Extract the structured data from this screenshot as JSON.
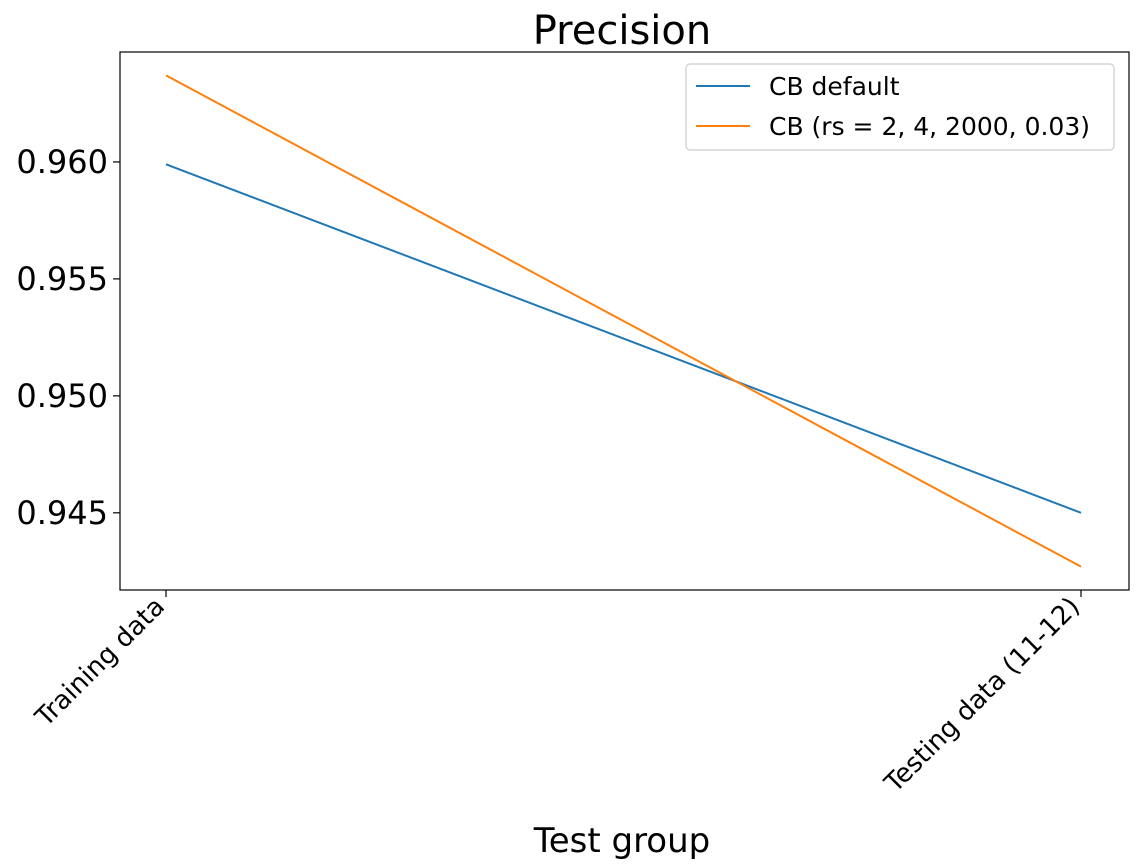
{
  "chart_data": {
    "type": "line",
    "title": "Precision",
    "xlabel": "Test group",
    "ylabel": "",
    "categories": [
      "Training data",
      "Testing data (11-12)"
    ],
    "ylim": [
      0.9417,
      0.9647
    ],
    "yticks": [
      "0.945",
      "0.950",
      "0.955",
      "0.960"
    ],
    "grid": false,
    "legend_position": "top-right",
    "series": [
      {
        "name": "CB default",
        "color": "#1f77b4",
        "values": [
          0.9599,
          0.945
        ]
      },
      {
        "name": "CB (rs = 2, 4, 2000, 0.03)",
        "color": "#ff7f0e",
        "values": [
          0.9637,
          0.9427
        ]
      }
    ]
  }
}
